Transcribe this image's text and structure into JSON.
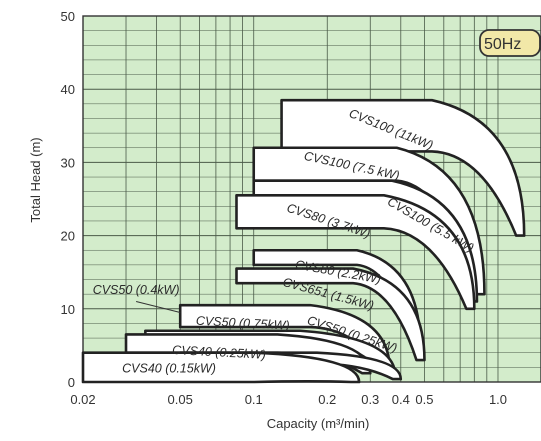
{
  "chart_data": {
    "type": "area",
    "title": "",
    "xlabel": "Capacity (m³/min)",
    "ylabel": "Total Head (m)",
    "x_scale": "log",
    "xlim": [
      0.02,
      1.5
    ],
    "ylim": [
      0,
      50
    ],
    "x_ticks": [
      {
        "value": 0.02,
        "label": "0.02"
      },
      {
        "value": 0.05,
        "label": "0.05"
      },
      {
        "value": 0.1,
        "label": "0.1"
      },
      {
        "value": 0.2,
        "label": "0.2"
      },
      {
        "value": 0.3,
        "label": "0.3"
      },
      {
        "value": 0.4,
        "label": "0.4"
      },
      {
        "value": 0.5,
        "label": "0.5"
      },
      {
        "value": 1.0,
        "label": "1.0"
      }
    ],
    "y_ticks": [
      0,
      10,
      20,
      30,
      40,
      50
    ],
    "grid": true,
    "frequency_badge": "50Hz",
    "regions": [
      {
        "name": "CVS100 (11kW)",
        "q_min": 0.13,
        "q_max": 1.28,
        "h_low": 31.5,
        "h_high": 38.5,
        "h_end": 20
      },
      {
        "name": "CVS100 (7.5 kW)",
        "q_min": 0.1,
        "q_max": 0.88,
        "h_low": 27.5,
        "h_high": 32,
        "h_end": 12
      },
      {
        "name": "CVS100 (5.5 kW)",
        "q_min": 0.1,
        "q_max": 0.82,
        "h_low": 25,
        "h_high": 27.5,
        "h_end": 11
      },
      {
        "name": "CVS80 (3.7kW)",
        "q_min": 0.085,
        "q_max": 0.8,
        "h_low": 21,
        "h_high": 25.5,
        "h_end": 10
      },
      {
        "name": "CVS80 (2.2kW)",
        "q_min": 0.1,
        "q_max": 0.48,
        "h_low": 16,
        "h_high": 18,
        "h_end": 5
      },
      {
        "name": "CVS651 (1.5kW)",
        "q_min": 0.085,
        "q_max": 0.5,
        "h_low": 13.5,
        "h_high": 15.5,
        "h_end": 3
      },
      {
        "name": "CVS50 (0.75kW)",
        "q_min": 0.05,
        "q_max": 0.36,
        "h_low": 7.5,
        "h_high": 10.5,
        "h_end": 1.8
      },
      {
        "name": "CVS50 (0.25kW)",
        "q_min": 0.036,
        "q_max": 0.38,
        "h_low": 6,
        "h_high": 7,
        "h_end": 0.8
      },
      {
        "name": "CVS40 (0.25kW)",
        "q_min": 0.03,
        "q_max": 0.3,
        "h_low": 4,
        "h_high": 6.5,
        "h_end": 1.2
      },
      {
        "name": "CVS50 (0.4kW)",
        "q_min": 0.05,
        "q_max": 0.4,
        "h_low": 2.5,
        "h_high": 4,
        "h_end": 0.4
      },
      {
        "name": "CVS40 (0.15kW)",
        "q_min": 0.02,
        "q_max": 0.27,
        "h_low": 0,
        "h_high": 4,
        "h_end": 0
      }
    ],
    "labels": [
      {
        "text": "CVS100 (11kW)",
        "x": 0.36,
        "y": 34,
        "rotate": 22
      },
      {
        "text": "CVS100 (7.5 kW)",
        "x": 0.25,
        "y": 29,
        "rotate": 12
      },
      {
        "text": "CVS100 (5.5 kW)",
        "x": 0.52,
        "y": 21,
        "rotate": 30
      },
      {
        "text": "CVS80 (3.7kW)",
        "x": 0.2,
        "y": 21.5,
        "rotate": 18
      },
      {
        "text": "CVS80 (2.2kW)",
        "x": 0.22,
        "y": 14.5,
        "rotate": 10
      },
      {
        "text": "CVS651 (1.5kW)",
        "x": 0.2,
        "y": 11.5,
        "rotate": 15
      },
      {
        "text": "CVS50 (0.75kW)",
        "x": 0.09,
        "y": 7.5,
        "rotate": 3
      },
      {
        "text": "CVS50 (0.25kW)",
        "x": 0.25,
        "y": 6,
        "rotate": 18
      },
      {
        "text": "CVS40 (0.25kW)",
        "x": 0.072,
        "y": 3.5,
        "rotate": 3
      },
      {
        "text": "CVS40 (0.15kW)",
        "x": 0.045,
        "y": 1.3,
        "rotate": 0
      },
      {
        "text": "CVS50 (0.4kW)",
        "x": 0.033,
        "y": 12,
        "rotate": 0
      }
    ],
    "leaders": [
      {
        "x1": 0.033,
        "y1": 11,
        "x2": 0.05,
        "y2": 9.5
      }
    ]
  }
}
